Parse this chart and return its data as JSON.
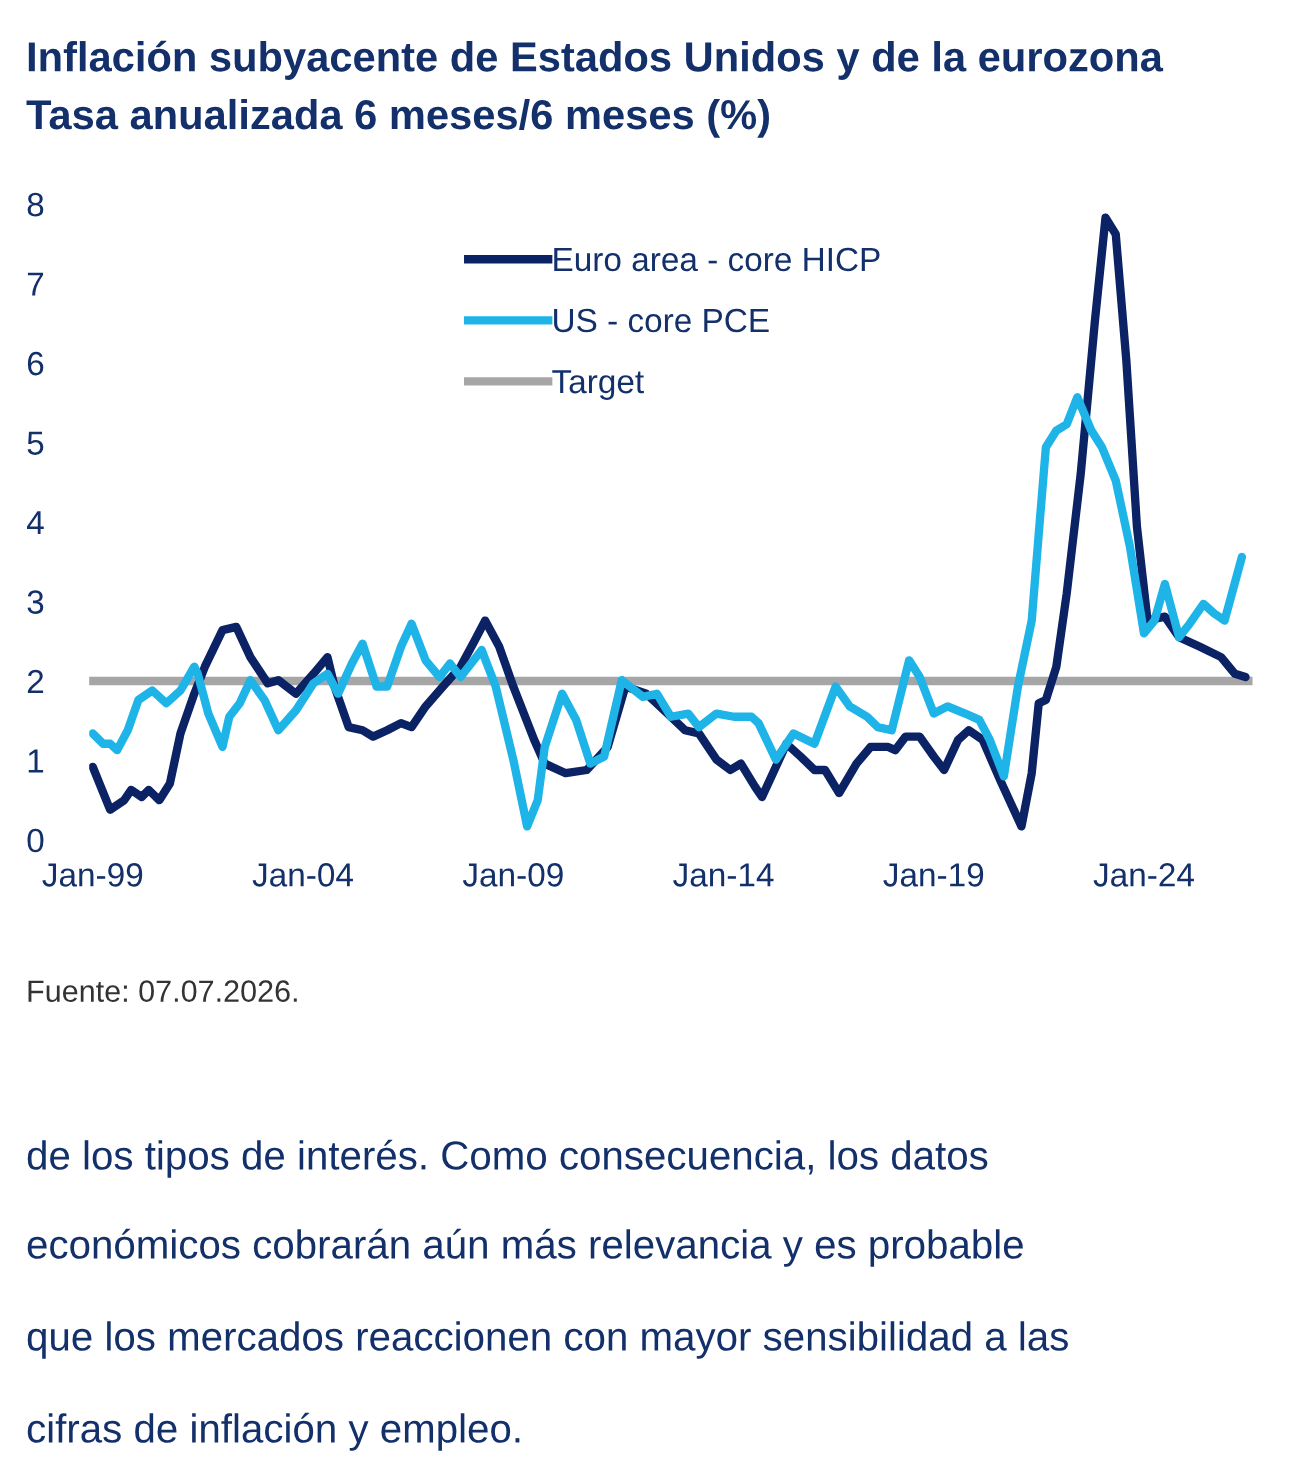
{
  "chart_data": {
    "type": "line",
    "title": "Inflación subyacente de Estados Unidos y de la eurozona",
    "subtitle": "Tasa anualizada 6 meses/6 meses (%)",
    "series": [
      {
        "name": "Euro area - core HICP",
        "color": "#0b2264",
        "x": [
          "1999-01",
          "1999-06",
          "1999-10",
          "1999-12",
          "2000-03",
          "2000-05",
          "2000-08",
          "2000-11",
          "2001-02",
          "2001-06",
          "2001-09",
          "2002-02",
          "2002-06",
          "2002-10",
          "2003-03",
          "2003-06",
          "2003-11",
          "2004-04",
          "2004-08",
          "2004-10",
          "2005-02",
          "2005-06",
          "2005-09",
          "2006-01",
          "2006-05",
          "2006-08",
          "2006-12",
          "2007-05",
          "2007-10",
          "2008-02",
          "2008-05",
          "2008-09",
          "2009-01",
          "2009-07",
          "2009-10",
          "2010-04",
          "2010-10",
          "2011-04",
          "2011-09",
          "2012-03",
          "2012-09",
          "2013-02",
          "2013-06",
          "2013-11",
          "2014-03",
          "2014-06",
          "2014-10",
          "2014-12",
          "2015-04",
          "2015-07",
          "2015-11",
          "2016-03",
          "2016-06",
          "2016-10",
          "2017-03",
          "2017-07",
          "2017-12",
          "2018-02",
          "2018-05",
          "2018-09",
          "2019-01",
          "2019-04",
          "2019-08",
          "2019-11",
          "2020-03",
          "2020-08",
          "2021-02",
          "2021-05",
          "2021-07",
          "2021-09",
          "2021-12",
          "2022-03",
          "2022-07",
          "2022-11",
          "2023-02",
          "2023-05",
          "2023-08",
          "2023-11",
          "2024-02",
          "2024-07",
          "2024-11",
          "2025-05",
          "2025-11",
          "2026-03",
          "2026-06"
        ],
        "values": [
          0.92,
          0.38,
          0.5,
          0.63,
          0.54,
          0.63,
          0.5,
          0.71,
          1.34,
          1.84,
          2.18,
          2.64,
          2.68,
          2.3,
          1.97,
          2.01,
          1.84,
          2.09,
          2.3,
          1.93,
          1.42,
          1.38,
          1.3,
          1.38,
          1.47,
          1.42,
          1.68,
          1.93,
          2.18,
          2.51,
          2.76,
          2.43,
          1.93,
          1.26,
          0.96,
          0.84,
          0.88,
          1.17,
          1.93,
          1.84,
          1.59,
          1.38,
          1.34,
          1.01,
          0.88,
          0.96,
          0.67,
          0.54,
          0.92,
          1.21,
          1.05,
          0.88,
          0.88,
          0.59,
          0.96,
          1.17,
          1.17,
          1.13,
          1.3,
          1.3,
          1.05,
          0.88,
          1.26,
          1.38,
          1.26,
          0.75,
          0.17,
          0.84,
          1.72,
          1.76,
          2.18,
          3.1,
          4.61,
          6.53,
          7.83,
          7.62,
          6.03,
          3.94,
          2.76,
          2.81,
          2.55,
          2.43,
          2.3,
          2.09,
          2.05
        ]
      },
      {
        "name": "US - core PCE",
        "color": "#1eb4e8",
        "x": [
          "1999-01",
          "1999-04",
          "1999-06",
          "1999-08",
          "1999-11",
          "2000-02",
          "2000-06",
          "2000-10",
          "2001-02",
          "2001-06",
          "2001-07",
          "2001-10",
          "2002-02",
          "2002-04",
          "2002-07",
          "2002-10",
          "2003-02",
          "2003-06",
          "2003-11",
          "2004-04",
          "2004-08",
          "2004-11",
          "2005-03",
          "2005-06",
          "2005-10",
          "2006-01",
          "2006-05",
          "2006-08",
          "2006-12",
          "2007-04",
          "2007-07",
          "2007-10",
          "2008-04",
          "2008-08",
          "2009-01",
          "2009-05",
          "2009-08",
          "2009-10",
          "2010-03",
          "2010-07",
          "2010-11",
          "2011-03",
          "2011-08",
          "2012-02",
          "2012-06",
          "2012-10",
          "2013-03",
          "2013-06",
          "2013-11",
          "2014-04",
          "2014-09",
          "2014-11",
          "2015-04",
          "2015-09",
          "2016-03",
          "2016-09",
          "2017-01",
          "2017-06",
          "2017-09",
          "2018-01",
          "2018-06",
          "2018-09",
          "2019-01",
          "2019-05",
          "2019-10",
          "2020-02",
          "2020-05",
          "2020-09",
          "2021-01",
          "2021-05",
          "2021-07",
          "2021-09",
          "2021-12",
          "2022-03",
          "2022-06",
          "2022-10",
          "2023-01",
          "2023-05",
          "2023-09",
          "2024-01",
          "2024-04",
          "2024-07",
          "2024-11",
          "2025-02",
          "2025-06",
          "2025-09",
          "2025-12",
          "2026-05"
        ],
        "values": [
          1.34,
          1.21,
          1.21,
          1.13,
          1.38,
          1.76,
          1.88,
          1.72,
          1.88,
          2.18,
          2.09,
          1.59,
          1.17,
          1.55,
          1.72,
          2.01,
          1.76,
          1.38,
          1.63,
          1.97,
          2.09,
          1.84,
          2.22,
          2.47,
          1.93,
          1.93,
          2.43,
          2.72,
          2.26,
          2.05,
          2.22,
          2.05,
          2.39,
          1.93,
          1.01,
          0.17,
          0.5,
          1.17,
          1.84,
          1.51,
          0.96,
          1.05,
          2.01,
          1.8,
          1.84,
          1.55,
          1.59,
          1.42,
          1.59,
          1.55,
          1.55,
          1.47,
          1.01,
          1.34,
          1.21,
          1.93,
          1.68,
          1.55,
          1.42,
          1.38,
          2.26,
          2.05,
          1.59,
          1.68,
          1.59,
          1.51,
          1.26,
          0.8,
          1.93,
          2.76,
          3.85,
          4.94,
          5.15,
          5.23,
          5.57,
          5.15,
          4.94,
          4.52,
          3.69,
          2.6,
          2.76,
          3.22,
          2.55,
          2.72,
          2.97,
          2.85,
          2.76,
          3.56
        ]
      }
    ],
    "ref_lines": [
      {
        "axis": "y",
        "value": 2,
        "label": "Target",
        "color": "#a6a6a6"
      }
    ],
    "xlim": [
      "1998-12",
      "2026-08"
    ],
    "xticks": [
      {
        "value": "1999-01",
        "label": "Jan-99"
      },
      {
        "value": "2004-01",
        "label": "Jan-04"
      },
      {
        "value": "2009-01",
        "label": "Jan-09"
      },
      {
        "value": "2014-01",
        "label": "Jan-14"
      },
      {
        "value": "2019-01",
        "label": "Jan-19"
      },
      {
        "value": "2024-01",
        "label": "Jan-24"
      }
    ],
    "ylim": [
      0,
      8
    ],
    "yticks": [
      0,
      1,
      2,
      3,
      4,
      5,
      6,
      7,
      8
    ],
    "grid": false,
    "legend": "top left",
    "annotations": [
      "Fuente: 07.07.2026.",
      "de los tipos de interés. Como consecuencia, los datos",
      "económicos cobrarán aún más relevancia y es probable",
      "que los mercados reaccionen con mayor sensibilidad a las",
      "cifras de inflación y empleo."
    ]
  }
}
